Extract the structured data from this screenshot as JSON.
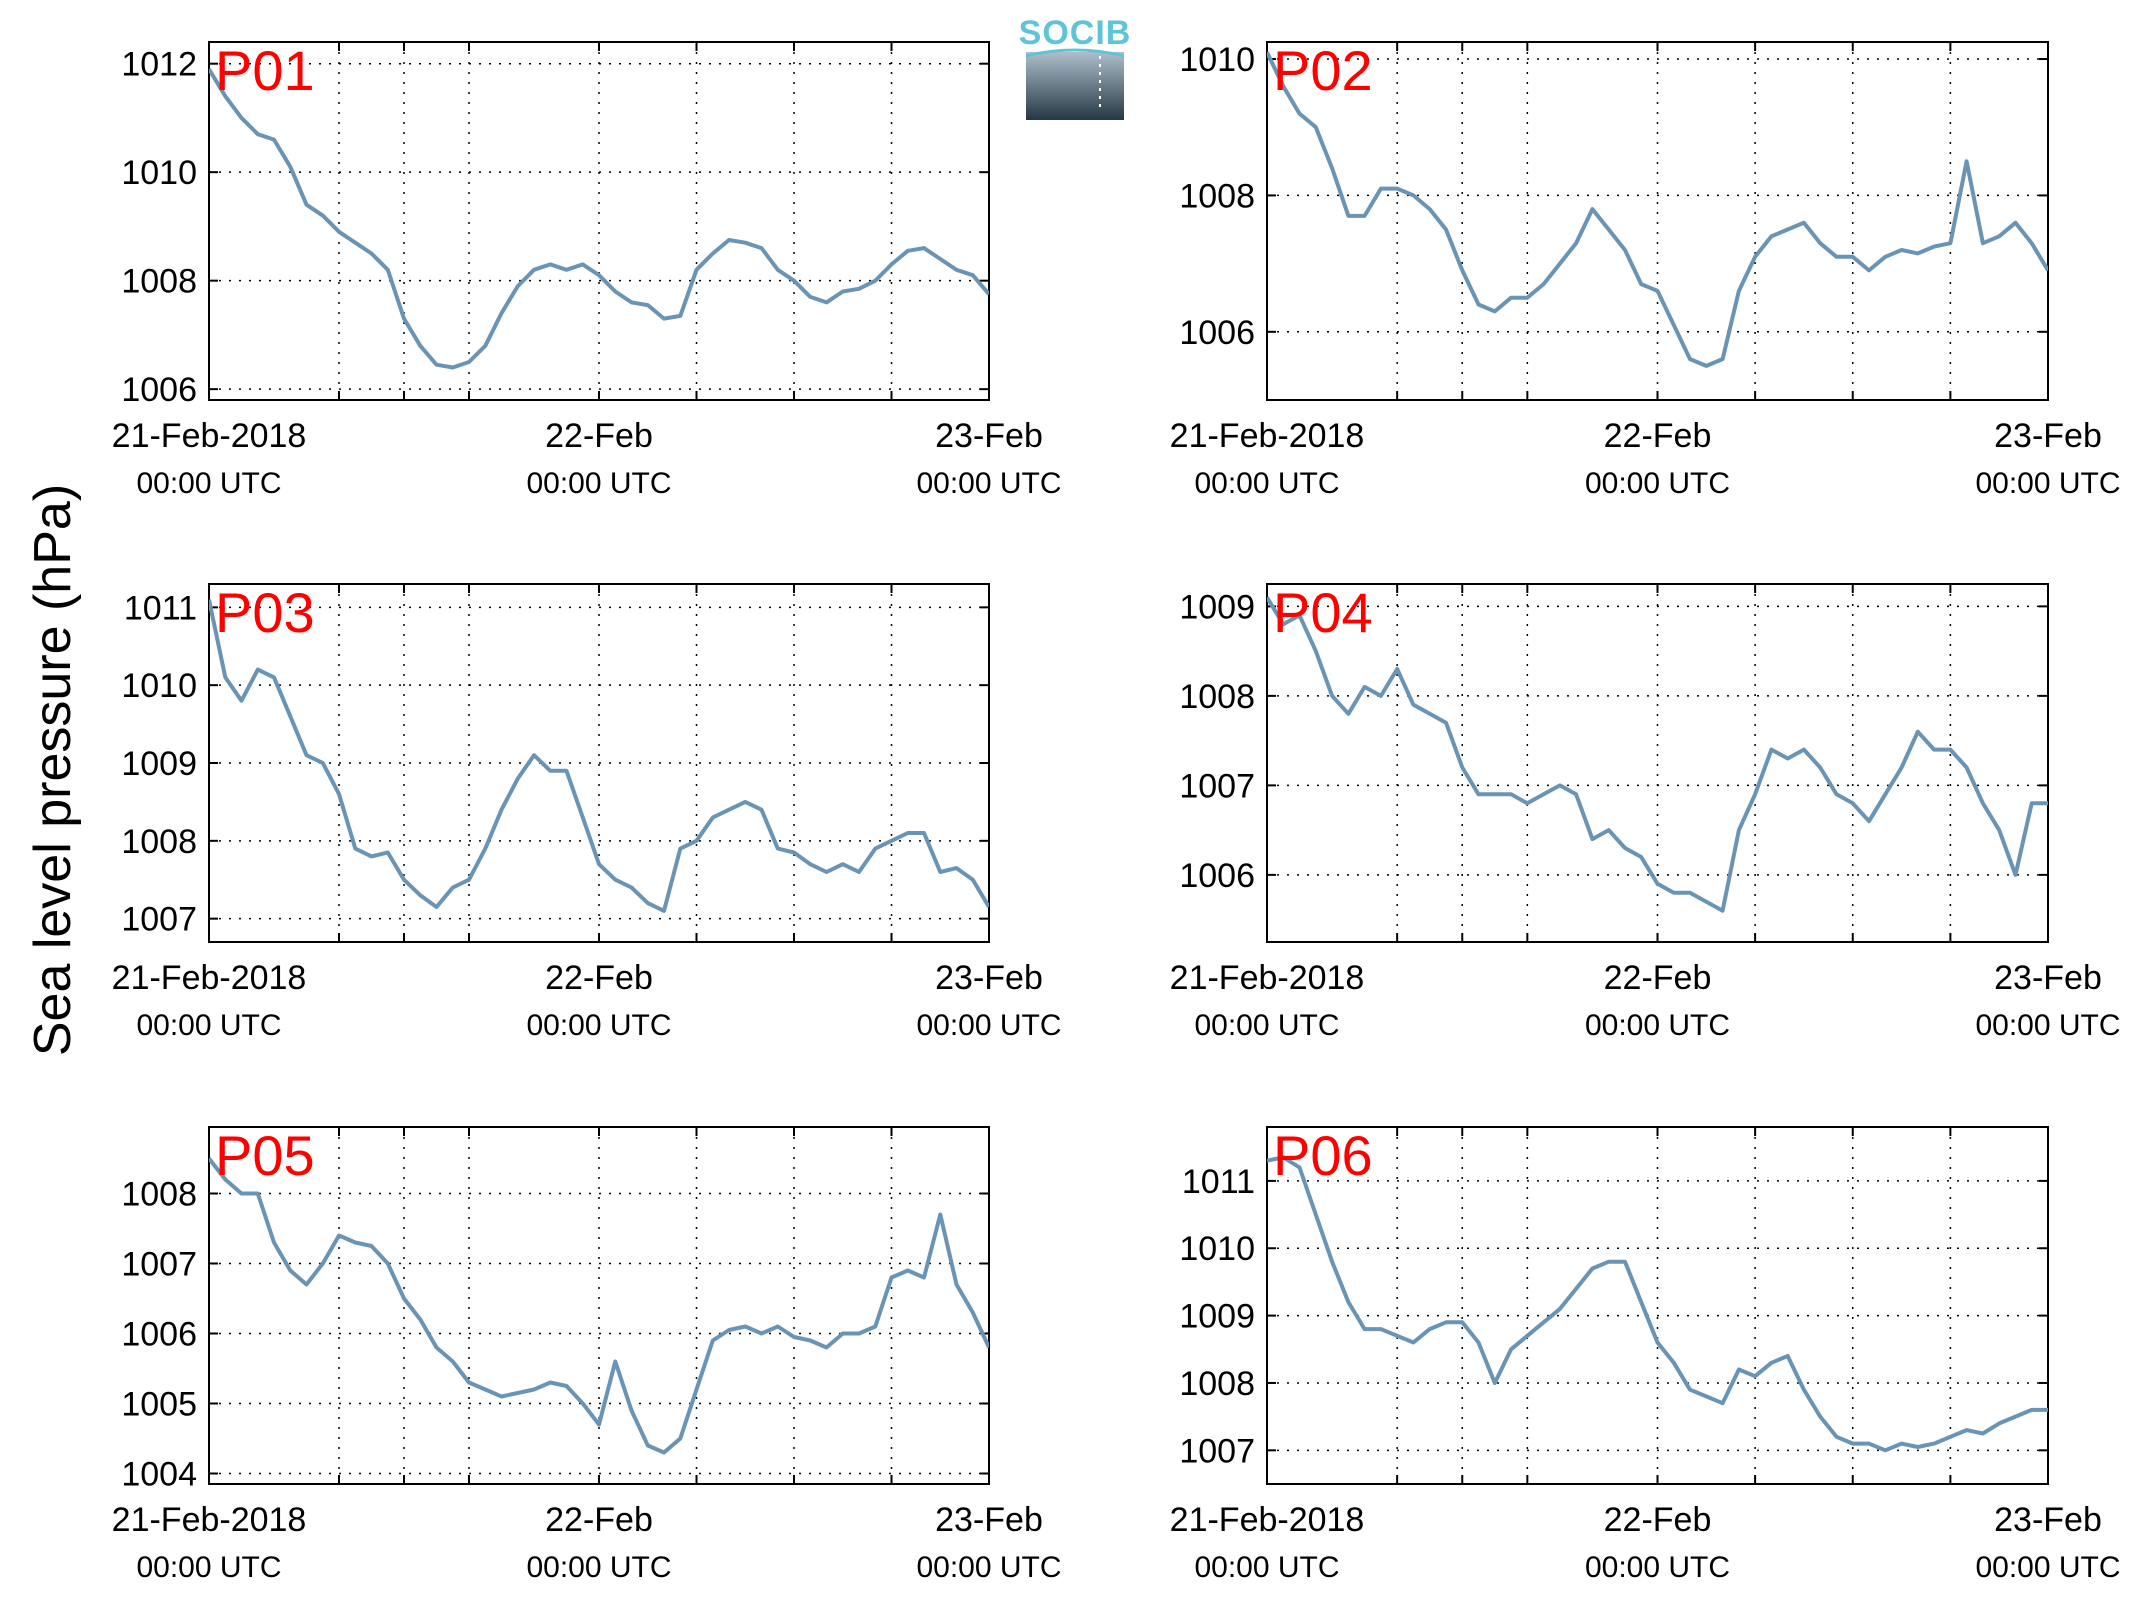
{
  "figure": {
    "ylabel": "Sea level pressure (hPa)",
    "logo_text": "SOCIB",
    "line_color": "#6a94b5",
    "label_color": "#ff0000"
  },
  "chart_data": [
    {
      "type": "line",
      "name": "P01",
      "xlim": [
        0,
        48
      ],
      "ylim": [
        1005.8,
        1012.4
      ],
      "yticks": [
        1006,
        1008,
        1010,
        1012
      ],
      "xticks": [
        {
          "pos": 0,
          "label": "21-Feb-2018",
          "sub": "00:00 UTC"
        },
        {
          "pos": 24,
          "label": "22-Feb",
          "sub": "00:00 UTC"
        },
        {
          "pos": 48,
          "label": "23-Feb",
          "sub": "00:00 UTC"
        }
      ],
      "x": [
        0,
        1,
        2,
        3,
        4,
        5,
        6,
        7,
        8,
        9,
        10,
        11,
        12,
        13,
        14,
        15,
        16,
        17,
        18,
        19,
        20,
        21,
        22,
        23,
        24,
        25,
        26,
        27,
        28,
        29,
        30,
        31,
        32,
        33,
        34,
        35,
        36,
        37,
        38,
        39,
        40,
        41,
        42,
        43,
        44,
        45,
        46,
        47,
        48
      ],
      "y": [
        1011.9,
        1011.4,
        1011.0,
        1010.7,
        1010.6,
        1010.1,
        1009.4,
        1009.2,
        1008.9,
        1008.7,
        1008.5,
        1008.2,
        1007.3,
        1006.8,
        1006.45,
        1006.4,
        1006.5,
        1006.8,
        1007.4,
        1007.9,
        1008.2,
        1008.3,
        1008.2,
        1008.3,
        1008.1,
        1007.8,
        1007.6,
        1007.55,
        1007.3,
        1007.35,
        1008.2,
        1008.5,
        1008.75,
        1008.7,
        1008.6,
        1008.2,
        1008.0,
        1007.7,
        1007.6,
        1007.8,
        1007.85,
        1008.0,
        1008.3,
        1008.55,
        1008.6,
        1008.4,
        1008.2,
        1008.1,
        1007.75
      ]
    },
    {
      "type": "line",
      "name": "P02",
      "xlim": [
        0,
        48
      ],
      "ylim": [
        1005.0,
        1010.25
      ],
      "yticks": [
        1006,
        1008,
        1010
      ],
      "xticks": [
        {
          "pos": 0,
          "label": "21-Feb-2018",
          "sub": "00:00 UTC"
        },
        {
          "pos": 24,
          "label": "22-Feb",
          "sub": "00:00 UTC"
        },
        {
          "pos": 48,
          "label": "23-Feb",
          "sub": "00:00 UTC"
        }
      ],
      "x": [
        0,
        1,
        2,
        3,
        4,
        5,
        6,
        7,
        8,
        9,
        10,
        11,
        12,
        13,
        14,
        15,
        16,
        17,
        18,
        19,
        20,
        21,
        22,
        23,
        24,
        25,
        26,
        27,
        28,
        29,
        30,
        31,
        32,
        33,
        34,
        35,
        36,
        37,
        38,
        39,
        40,
        41,
        42,
        43,
        44,
        45,
        46,
        47,
        48
      ],
      "y": [
        1010.1,
        1009.6,
        1009.2,
        1009.0,
        1008.4,
        1007.7,
        1007.7,
        1008.1,
        1008.1,
        1008.0,
        1007.8,
        1007.5,
        1006.9,
        1006.4,
        1006.3,
        1006.5,
        1006.5,
        1006.7,
        1007.0,
        1007.3,
        1007.8,
        1007.5,
        1007.2,
        1006.7,
        1006.6,
        1006.1,
        1005.6,
        1005.5,
        1005.6,
        1006.6,
        1007.1,
        1007.4,
        1007.5,
        1007.6,
        1007.3,
        1007.1,
        1007.1,
        1006.9,
        1007.1,
        1007.2,
        1007.15,
        1007.25,
        1007.3,
        1008.5,
        1007.3,
        1007.4,
        1007.6,
        1007.3,
        1006.9
      ]
    },
    {
      "type": "line",
      "name": "P03",
      "xlim": [
        0,
        48
      ],
      "ylim": [
        1006.7,
        1011.3
      ],
      "yticks": [
        1007,
        1008,
        1009,
        1010,
        1011
      ],
      "xticks": [
        {
          "pos": 0,
          "label": "21-Feb-2018",
          "sub": "00:00 UTC"
        },
        {
          "pos": 24,
          "label": "22-Feb",
          "sub": "00:00 UTC"
        },
        {
          "pos": 48,
          "label": "23-Feb",
          "sub": "00:00 UTC"
        }
      ],
      "x": [
        0,
        1,
        2,
        3,
        4,
        5,
        6,
        7,
        8,
        9,
        10,
        11,
        12,
        13,
        14,
        15,
        16,
        17,
        18,
        19,
        20,
        21,
        22,
        23,
        24,
        25,
        26,
        27,
        28,
        29,
        30,
        31,
        32,
        33,
        34,
        35,
        36,
        37,
        38,
        39,
        40,
        41,
        42,
        43,
        44,
        45,
        46,
        47,
        48
      ],
      "y": [
        1011.1,
        1010.1,
        1009.8,
        1010.2,
        1010.1,
        1009.6,
        1009.1,
        1009.0,
        1008.6,
        1007.9,
        1007.8,
        1007.85,
        1007.5,
        1007.3,
        1007.15,
        1007.4,
        1007.5,
        1007.9,
        1008.4,
        1008.8,
        1009.1,
        1008.9,
        1008.9,
        1008.3,
        1007.7,
        1007.5,
        1007.4,
        1007.2,
        1007.1,
        1007.9,
        1008.0,
        1008.3,
        1008.4,
        1008.5,
        1008.4,
        1007.9,
        1007.85,
        1007.7,
        1007.6,
        1007.7,
        1007.6,
        1007.9,
        1008.0,
        1008.1,
        1008.1,
        1007.6,
        1007.65,
        1007.5,
        1007.15
      ]
    },
    {
      "type": "line",
      "name": "P04",
      "xlim": [
        0,
        48
      ],
      "ylim": [
        1005.25,
        1009.25
      ],
      "yticks": [
        1006,
        1007,
        1008,
        1009
      ],
      "xticks": [
        {
          "pos": 0,
          "label": "21-Feb-2018",
          "sub": "00:00 UTC"
        },
        {
          "pos": 24,
          "label": "22-Feb",
          "sub": "00:00 UTC"
        },
        {
          "pos": 48,
          "label": "23-Feb",
          "sub": "00:00 UTC"
        }
      ],
      "x": [
        0,
        1,
        2,
        3,
        4,
        5,
        6,
        7,
        8,
        9,
        10,
        11,
        12,
        13,
        14,
        15,
        16,
        17,
        18,
        19,
        20,
        21,
        22,
        23,
        24,
        25,
        26,
        27,
        28,
        29,
        30,
        31,
        32,
        33,
        34,
        35,
        36,
        37,
        38,
        39,
        40,
        41,
        42,
        43,
        44,
        45,
        46,
        47,
        48
      ],
      "y": [
        1009.1,
        1008.8,
        1008.9,
        1008.5,
        1008.0,
        1007.8,
        1008.1,
        1008.0,
        1008.3,
        1007.9,
        1007.8,
        1007.7,
        1007.2,
        1006.9,
        1006.9,
        1006.9,
        1006.8,
        1006.9,
        1007.0,
        1006.9,
        1006.4,
        1006.5,
        1006.3,
        1006.2,
        1005.9,
        1005.8,
        1005.8,
        1005.7,
        1005.6,
        1006.5,
        1006.9,
        1007.4,
        1007.3,
        1007.4,
        1007.2,
        1006.9,
        1006.8,
        1006.6,
        1006.9,
        1007.2,
        1007.6,
        1007.4,
        1007.4,
        1007.2,
        1006.8,
        1006.5,
        1006.0,
        1006.8,
        1006.8
      ]
    },
    {
      "type": "line",
      "name": "P05",
      "xlim": [
        0,
        48
      ],
      "ylim": [
        1003.85,
        1008.95
      ],
      "yticks": [
        1004,
        1005,
        1006,
        1007,
        1008
      ],
      "xticks": [
        {
          "pos": 0,
          "label": "21-Feb-2018",
          "sub": "00:00 UTC"
        },
        {
          "pos": 24,
          "label": "22-Feb",
          "sub": "00:00 UTC"
        },
        {
          "pos": 48,
          "label": "23-Feb",
          "sub": "00:00 UTC"
        }
      ],
      "x": [
        0,
        1,
        2,
        3,
        4,
        5,
        6,
        7,
        8,
        9,
        10,
        11,
        12,
        13,
        14,
        15,
        16,
        17,
        18,
        19,
        20,
        21,
        22,
        23,
        24,
        25,
        26,
        27,
        28,
        29,
        30,
        31,
        32,
        33,
        34,
        35,
        36,
        37,
        38,
        39,
        40,
        41,
        42,
        43,
        44,
        45,
        46,
        47,
        48
      ],
      "y": [
        1008.5,
        1008.2,
        1008.0,
        1008.0,
        1007.3,
        1006.9,
        1006.7,
        1007.0,
        1007.4,
        1007.3,
        1007.25,
        1007.0,
        1006.5,
        1006.2,
        1005.8,
        1005.6,
        1005.3,
        1005.2,
        1005.1,
        1005.15,
        1005.2,
        1005.3,
        1005.25,
        1005.0,
        1004.7,
        1005.6,
        1004.9,
        1004.4,
        1004.3,
        1004.5,
        1005.2,
        1005.9,
        1006.05,
        1006.1,
        1006.0,
        1006.1,
        1005.95,
        1005.9,
        1005.8,
        1006.0,
        1006.0,
        1006.1,
        1006.8,
        1006.9,
        1006.8,
        1007.7,
        1006.7,
        1006.3,
        1005.8
      ]
    },
    {
      "type": "line",
      "name": "P06",
      "xlim": [
        0,
        48
      ],
      "ylim": [
        1006.5,
        1011.8
      ],
      "yticks": [
        1007,
        1008,
        1009,
        1010,
        1011
      ],
      "xticks": [
        {
          "pos": 0,
          "label": "21-Feb-2018",
          "sub": "00:00 UTC"
        },
        {
          "pos": 24,
          "label": "22-Feb",
          "sub": "00:00 UTC"
        },
        {
          "pos": 48,
          "label": "23-Feb",
          "sub": "00:00 UTC"
        }
      ],
      "x": [
        0,
        1,
        2,
        3,
        4,
        5,
        6,
        7,
        8,
        9,
        10,
        11,
        12,
        13,
        14,
        15,
        16,
        17,
        18,
        19,
        20,
        21,
        22,
        23,
        24,
        25,
        26,
        27,
        28,
        29,
        30,
        31,
        32,
        33,
        34,
        35,
        36,
        37,
        38,
        39,
        40,
        41,
        42,
        43,
        44,
        45,
        46,
        47,
        48
      ],
      "y": [
        1011.3,
        1011.35,
        1011.2,
        1010.5,
        1009.8,
        1009.2,
        1008.8,
        1008.8,
        1008.7,
        1008.6,
        1008.8,
        1008.9,
        1008.9,
        1008.6,
        1008.0,
        1008.5,
        1008.7,
        1008.9,
        1009.1,
        1009.4,
        1009.7,
        1009.8,
        1009.8,
        1009.2,
        1008.6,
        1008.3,
        1007.9,
        1007.8,
        1007.7,
        1008.2,
        1008.1,
        1008.3,
        1008.4,
        1007.9,
        1007.5,
        1007.2,
        1007.1,
        1007.1,
        1007.0,
        1007.1,
        1007.05,
        1007.1,
        1007.2,
        1007.3,
        1007.25,
        1007.4,
        1007.5,
        1007.6,
        1007.6
      ]
    }
  ]
}
